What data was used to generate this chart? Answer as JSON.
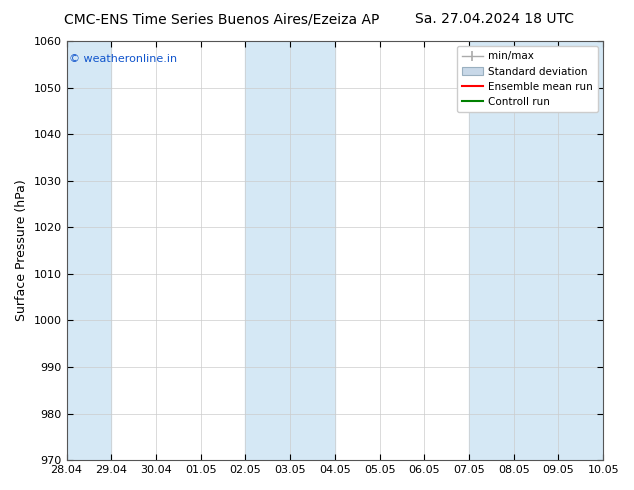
{
  "title": "CMC-ENS Time Series Buenos Aires/Ezeiza AP",
  "title_right": "Sa. 27.04.2024 18 UTC",
  "ylabel": "Surface Pressure (hPa)",
  "ylim": [
    970,
    1060
  ],
  "yticks": [
    970,
    980,
    990,
    1000,
    1010,
    1020,
    1030,
    1040,
    1050,
    1060
  ],
  "xlim": [
    0,
    12
  ],
  "xtick_positions": [
    0,
    1,
    2,
    3,
    4,
    5,
    6,
    7,
    8,
    9,
    10,
    11,
    12
  ],
  "xtick_labels": [
    "28.04",
    "29.04",
    "30.04",
    "01.05",
    "02.05",
    "03.05",
    "04.05",
    "05.05",
    "06.05",
    "07.05",
    "08.05",
    "09.05",
    "10.05"
  ],
  "shaded_intervals": [
    [
      0,
      1
    ],
    [
      4,
      6
    ],
    [
      9,
      12
    ]
  ],
  "shaded_color": "#d5e8f5",
  "bg_color": "#ffffff",
  "watermark_text": "© weatheronline.in",
  "watermark_color": "#1155cc",
  "title_fontsize": 10,
  "ylabel_fontsize": 9,
  "tick_fontsize": 8,
  "watermark_fontsize": 8,
  "legend_fontsize": 7.5,
  "minmax_color": "#aaaaaa",
  "stddev_color": "#c8d8e8",
  "stddev_edge_color": "#9ab0c0",
  "ensemble_color": "red",
  "control_color": "green"
}
